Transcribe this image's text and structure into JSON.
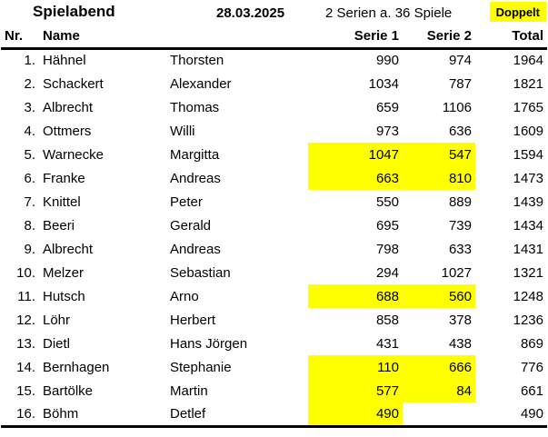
{
  "header": {
    "title": "Spielabend",
    "date": "28.03.2025",
    "series_info": "2 Serien a. 36 Spiele",
    "doppelt": "Doppelt"
  },
  "columns": {
    "nr": "Nr.",
    "name": "Name",
    "serie1": "Serie 1",
    "serie2": "Serie 2",
    "total": "Total"
  },
  "colors": {
    "highlight": "#ffff00",
    "text": "#000000",
    "background": "#ffffff"
  },
  "rows": [
    {
      "nr": "1.",
      "last": "Hähnel",
      "first": "Thorsten",
      "serie1": "990",
      "serie2": "974",
      "total": "1964",
      "hl1": false,
      "hl2": false
    },
    {
      "nr": "2.",
      "last": "Schackert",
      "first": "Alexander",
      "serie1": "1034",
      "serie2": "787",
      "total": "1821",
      "hl1": false,
      "hl2": false
    },
    {
      "nr": "3.",
      "last": "Albrecht",
      "first": "Thomas",
      "serie1": "659",
      "serie2": "1106",
      "total": "1765",
      "hl1": false,
      "hl2": false
    },
    {
      "nr": "4.",
      "last": "Ottmers",
      "first": "Willi",
      "serie1": "973",
      "serie2": "636",
      "total": "1609",
      "hl1": false,
      "hl2": false
    },
    {
      "nr": "5.",
      "last": "Warnecke",
      "first": "Margitta",
      "serie1": "1047",
      "serie2": "547",
      "total": "1594",
      "hl1": true,
      "hl2": true
    },
    {
      "nr": "6.",
      "last": "Franke",
      "first": "Andreas",
      "serie1": "663",
      "serie2": "810",
      "total": "1473",
      "hl1": true,
      "hl2": true
    },
    {
      "nr": "7.",
      "last": "Knittel",
      "first": "Peter",
      "serie1": "550",
      "serie2": "889",
      "total": "1439",
      "hl1": false,
      "hl2": false
    },
    {
      "nr": "8.",
      "last": "Beeri",
      "first": "Gerald",
      "serie1": "695",
      "serie2": "739",
      "total": "1434",
      "hl1": false,
      "hl2": false
    },
    {
      "nr": "9.",
      "last": "Albrecht",
      "first": "Andreas",
      "serie1": "798",
      "serie2": "633",
      "total": "1431",
      "hl1": false,
      "hl2": false
    },
    {
      "nr": "10.",
      "last": "Melzer",
      "first": "Sebastian",
      "serie1": "294",
      "serie2": "1027",
      "total": "1321",
      "hl1": false,
      "hl2": false
    },
    {
      "nr": "11.",
      "last": "Hutsch",
      "first": "Arno",
      "serie1": "688",
      "serie2": "560",
      "total": "1248",
      "hl1": true,
      "hl2": true
    },
    {
      "nr": "12.",
      "last": "Löhr",
      "first": "Herbert",
      "serie1": "858",
      "serie2": "378",
      "total": "1236",
      "hl1": false,
      "hl2": false
    },
    {
      "nr": "13.",
      "last": "Dietl",
      "first": "Hans Jörgen",
      "serie1": "431",
      "serie2": "438",
      "total": "869",
      "hl1": false,
      "hl2": false
    },
    {
      "nr": "14.",
      "last": "Bernhagen",
      "first": "Stephanie",
      "serie1": "110",
      "serie2": "666",
      "total": "776",
      "hl1": true,
      "hl2": true
    },
    {
      "nr": "15.",
      "last": "Bartölke",
      "first": "Martin",
      "serie1": "577",
      "serie2": "84",
      "total": "661",
      "hl1": true,
      "hl2": true
    },
    {
      "nr": "16.",
      "last": "Böhm",
      "first": "Detlef",
      "serie1": "490",
      "serie2": "",
      "total": "490",
      "hl1": true,
      "hl2": false
    }
  ]
}
